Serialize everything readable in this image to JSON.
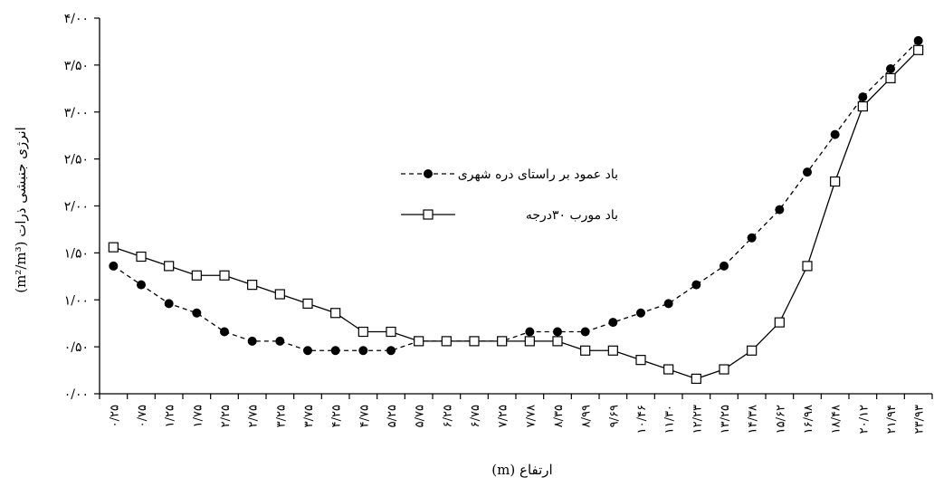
{
  "chart_data": {
    "type": "line",
    "xlabel": "ارتفاع (m)",
    "ylabel": "انرژی جنبشی ذرات (m²/m³)",
    "ylim": [
      0,
      4
    ],
    "yticks": [
      {
        "value": 0,
        "label": "۰/۰۰"
      },
      {
        "value": 0.5,
        "label": "۰/۵۰"
      },
      {
        "value": 1,
        "label": "۱/۰۰"
      },
      {
        "value": 1.5,
        "label": "۱/۵۰"
      },
      {
        "value": 2,
        "label": "۲/۰۰"
      },
      {
        "value": 2.5,
        "label": "۲/۵۰"
      },
      {
        "value": 3,
        "label": "۳/۰۰"
      },
      {
        "value": 3.5,
        "label": "۳/۵۰"
      },
      {
        "value": 4,
        "label": "۴/۰۰"
      }
    ],
    "categories": [
      "۰/۲۵",
      "۰/۷۵",
      "۱/۲۵",
      "۱/۷۵",
      "۲/۲۵",
      "۲/۷۵",
      "۳/۲۵",
      "۳/۷۵",
      "۴/۲۵",
      "۴/۷۵",
      "۵/۲۵",
      "۵/۷۵",
      "۶/۲۵",
      "۶/۷۵",
      "۷/۲۵",
      "۷/۷۸",
      "۸/۳۵",
      "۸/۹۹",
      "۹/۶۹",
      "۱۰/۴۶",
      "۱۱/۳۰",
      "۱۲/۲۳",
      "۱۳/۲۵",
      "۱۴/۳۸",
      "۱۵/۶۲",
      "۱۶/۹۸",
      "۱۸/۴۸",
      "۲۰/۱۲",
      "۲۱/۹۴",
      "۲۳/۹۳"
    ],
    "grid": false,
    "legend_position": "center",
    "series": [
      {
        "name": "باد عمود بر راستای دره شهری",
        "style": "dashed-filled-circle",
        "values": [
          1.36,
          1.16,
          0.96,
          0.86,
          0.66,
          0.56,
          0.56,
          0.46,
          0.46,
          0.46,
          0.46,
          0.56,
          0.56,
          0.56,
          0.56,
          0.66,
          0.66,
          0.66,
          0.76,
          0.86,
          0.96,
          1.16,
          1.36,
          1.66,
          1.96,
          2.36,
          2.76,
          3.16,
          3.46,
          3.76
        ]
      },
      {
        "name": "باد مورب ۳۰درجه",
        "style": "solid-open-square",
        "values": [
          1.56,
          1.46,
          1.36,
          1.26,
          1.26,
          1.16,
          1.06,
          0.96,
          0.86,
          0.66,
          0.66,
          0.56,
          0.56,
          0.56,
          0.56,
          0.56,
          0.56,
          0.46,
          0.46,
          0.36,
          0.26,
          0.16,
          0.26,
          0.46,
          0.76,
          1.36,
          2.26,
          3.06,
          3.36,
          3.66
        ]
      }
    ]
  }
}
